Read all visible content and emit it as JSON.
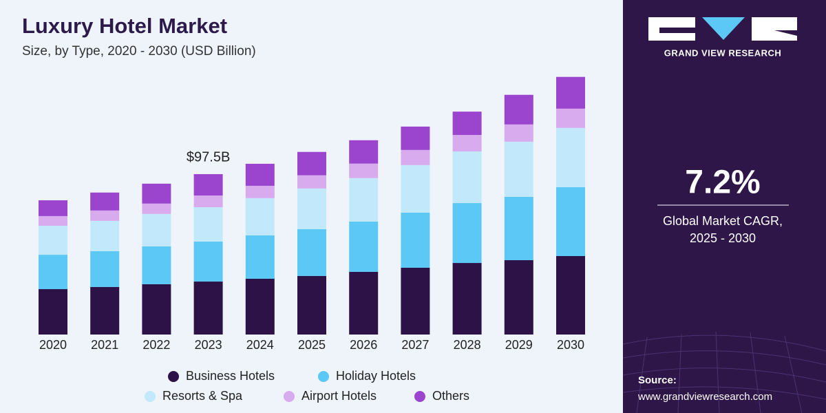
{
  "chart_data": {
    "type": "stacked-bar",
    "title": "Luxury Hotel Market",
    "subtitle": "Size, by Type, 2020 - 2030 (USD Billion)",
    "categories": [
      "2020",
      "2021",
      "2022",
      "2023",
      "2024",
      "2025",
      "2026",
      "2027",
      "2028",
      "2029",
      "2030"
    ],
    "series": [
      {
        "name": "Business Hotels",
        "color": "#2c1246",
        "values": [
          27.6,
          28.9,
          30.6,
          32.2,
          33.9,
          35.6,
          38.1,
          40.6,
          43.5,
          45.2,
          47.7
        ]
      },
      {
        "name": "Holiday Hotels",
        "color": "#5bc8f5",
        "values": [
          20.9,
          21.8,
          23.0,
          24.3,
          26.4,
          28.5,
          30.6,
          33.5,
          36.4,
          38.5,
          41.9
        ]
      },
      {
        "name": "Resorts & Spa",
        "color": "#c2e9fb",
        "values": [
          17.6,
          18.4,
          19.7,
          20.9,
          22.6,
          24.7,
          26.4,
          28.9,
          31.4,
          33.5,
          36.0
        ]
      },
      {
        "name": "Airport Hotels",
        "color": "#d8aaee",
        "values": [
          5.9,
          6.3,
          6.3,
          7.1,
          7.5,
          8.0,
          8.8,
          9.2,
          10.0,
          10.5,
          11.7
        ]
      },
      {
        "name": "Others",
        "color": "#9b45cf",
        "values": [
          9.6,
          10.9,
          12.1,
          13.0,
          13.4,
          14.2,
          14.2,
          14.2,
          14.2,
          18.0,
          19.3
        ]
      }
    ],
    "annotations": [
      {
        "category": "2023",
        "text": "$97.5B"
      }
    ]
  },
  "sidebar": {
    "brand": "GRAND VIEW RESEARCH",
    "cagr": "7.2%",
    "cagr_label": [
      "Global Market CAGR,",
      "2025 - 2030"
    ],
    "source_label": "Source:",
    "source_url": "www.grandviewresearch.com"
  }
}
